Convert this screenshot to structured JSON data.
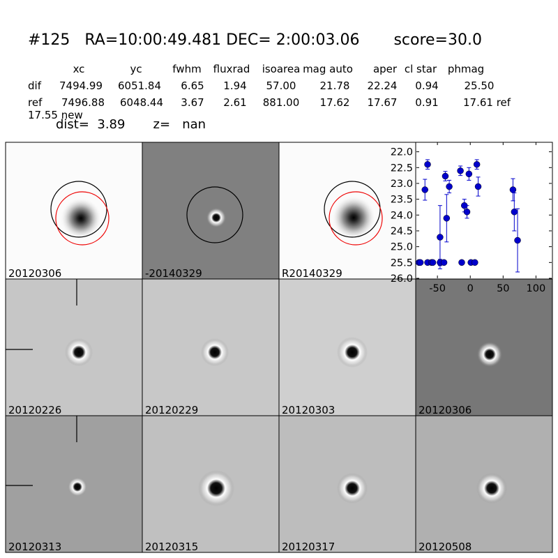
{
  "header": {
    "title": "#125   RA=10:00:49.481 DEC= 2:00:03.06       score=30.0"
  },
  "table": {
    "columns": [
      "xc",
      "yc",
      "fwhm",
      "fluxrad",
      "isoarea",
      "mag auto",
      "aper",
      "cl star",
      "phmag"
    ],
    "rows": [
      [
        "dif",
        "7494.99",
        "6051.84",
        "6.65",
        "1.94",
        "57.00",
        "21.78",
        "22.24",
        "0.94",
        "25.50"
      ],
      [
        "ref",
        "7496.88",
        "6048.44",
        "3.67",
        "2.61",
        "881.00",
        "17.62",
        "17.67",
        "0.91",
        "17.61 ref"
      ]
    ],
    "extra": "17.55 new",
    "dist": "dist=  3.89       z=   nan"
  },
  "panels": [
    "20120306",
    "-20140329",
    "R20140329",
    "20120226",
    "20120229",
    "20120303",
    "20120306",
    "20120313",
    "20120315",
    "20120317",
    "20120508"
  ],
  "chart_data": {
    "type": "scatter",
    "x": [
      -78,
      -76,
      -69,
      -65,
      -65,
      -59,
      -57,
      -46,
      -46,
      -40,
      -38,
      -36,
      -32,
      -15,
      -13,
      -9,
      -5,
      -2,
      1,
      7,
      10,
      12,
      65,
      67,
      72
    ],
    "values": [
      25.5,
      25.5,
      23.2,
      22.4,
      25.5,
      25.5,
      25.5,
      24.7,
      25.5,
      25.5,
      22.77,
      24.1,
      23.1,
      22.6,
      25.5,
      23.7,
      23.9,
      22.7,
      25.5,
      25.5,
      22.4,
      23.1,
      23.2,
      23.9,
      24.8
    ],
    "errors": [
      0.05,
      0.05,
      0.33,
      0.15,
      0.05,
      0.05,
      0.05,
      1.0,
      0.1,
      0.05,
      0.15,
      0.75,
      0.2,
      0.15,
      0.05,
      0.2,
      0.2,
      0.2,
      0.05,
      0.05,
      0.15,
      0.3,
      0.35,
      0.6,
      1.0
    ],
    "color": "#0000cc",
    "xlim": [
      -82,
      124
    ],
    "ylim": [
      26.0,
      21.7
    ],
    "xticks": [
      -50,
      0,
      50,
      100
    ],
    "yticks": [
      {
        "value": 22.0,
        "label": "22.0"
      },
      {
        "value": 22.5,
        "label": "22.5"
      },
      {
        "value": 23.0,
        "label": "23.0"
      },
      {
        "value": 23.5,
        "label": "23.5"
      },
      {
        "value": 24.0,
        "label": "24.0"
      },
      {
        "value": 24.5,
        "label": "24.5"
      },
      {
        "value": 25.0,
        "label": "25.0"
      },
      {
        "value": 25.5,
        "label": "25.5"
      },
      {
        "value": 26.0,
        "label": "26.0"
      }
    ]
  }
}
